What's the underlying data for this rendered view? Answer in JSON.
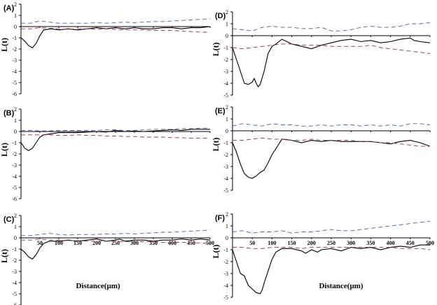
{
  "chart_data": [
    {
      "type": "line",
      "panel": "(A)",
      "ylabel": "L(t)",
      "ylim": [
        -6,
        2
      ],
      "yticks": [
        "2",
        "1",
        "0",
        "-1",
        "-2",
        "-3",
        "-4",
        "-5",
        "-6"
      ],
      "xlim": [
        0,
        500
      ],
      "xticks": [],
      "xlabel": "",
      "series": [
        {
          "style": "solid-black",
          "x": [
            0,
            10,
            20,
            30,
            40,
            50,
            60,
            80,
            100,
            125,
            150,
            175,
            200,
            225,
            250,
            275,
            300,
            325,
            350,
            375,
            400,
            425,
            450,
            475,
            500
          ],
          "y": [
            -1.0,
            -1.3,
            -1.7,
            -1.9,
            -1.5,
            -0.8,
            -0.3,
            -0.2,
            -0.3,
            -0.2,
            -0.3,
            -0.2,
            -0.1,
            -0.2,
            -0.1,
            -0.2,
            -0.1,
            -0.2,
            -0.2,
            -0.1,
            -0.1,
            -0.2,
            -0.1,
            -0.1,
            0.0
          ]
        },
        {
          "style": "dashed-blue",
          "x": [
            0,
            25,
            50,
            75,
            100,
            125,
            150,
            175,
            200,
            225,
            250,
            275,
            300,
            325,
            350,
            375,
            400,
            425,
            450,
            475,
            500
          ],
          "y": [
            0.3,
            0.3,
            0.5,
            0.4,
            0.3,
            0.3,
            0.3,
            0.3,
            0.35,
            0.3,
            0.35,
            0.4,
            0.35,
            0.4,
            0.45,
            0.45,
            0.5,
            0.55,
            0.6,
            0.65,
            0.7
          ]
        },
        {
          "style": "dashed-red",
          "x": [
            0,
            25,
            50,
            75,
            100,
            125,
            150,
            175,
            200,
            225,
            250,
            275,
            300,
            325,
            350,
            375,
            400,
            425,
            450,
            475,
            500
          ],
          "y": [
            -0.2,
            -0.2,
            -0.1,
            -0.15,
            -0.2,
            -0.25,
            -0.2,
            -0.2,
            -0.25,
            -0.2,
            -0.25,
            -0.3,
            -0.3,
            -0.3,
            -0.35,
            -0.35,
            -0.35,
            -0.4,
            -0.45,
            -0.5,
            -0.5
          ]
        }
      ]
    },
    {
      "type": "line",
      "panel": "(B)",
      "ylabel": "L(t)",
      "ylim": [
        -6,
        2
      ],
      "yticks": [
        "2",
        "1",
        "0",
        "-1",
        "-2",
        "-3",
        "-4",
        "-5",
        "-6"
      ],
      "xlim": [
        0,
        500
      ],
      "xticks": [],
      "xlabel": "",
      "series": [
        {
          "style": "solid-black",
          "x": [
            0,
            10,
            20,
            30,
            40,
            50,
            60,
            80,
            100,
            125,
            150,
            175,
            200,
            225,
            250,
            275,
            300,
            325,
            350,
            375,
            400,
            425,
            450,
            475,
            500
          ],
          "y": [
            -1.0,
            -1.5,
            -1.7,
            -1.5,
            -1.0,
            -0.5,
            -0.3,
            -0.2,
            -0.1,
            -0.1,
            -0.1,
            -0.05,
            0.0,
            -0.05,
            0.1,
            0.0,
            0.05,
            0.0,
            0.05,
            0.1,
            0.15,
            0.1,
            0.2,
            0.2,
            0.2
          ]
        },
        {
          "style": "dashed-blue",
          "x": [
            0,
            25,
            50,
            75,
            100,
            125,
            150,
            175,
            200,
            225,
            250,
            275,
            300,
            325,
            350,
            375,
            400,
            425,
            450,
            475,
            500
          ],
          "y": [
            0.1,
            0.1,
            0.05,
            0.05,
            0.1,
            0.1,
            0.1,
            0.1,
            0.1,
            0.15,
            0.15,
            0.1,
            0.1,
            0.15,
            0.2,
            0.2,
            0.2,
            0.25,
            0.25,
            0.3,
            0.3
          ]
        },
        {
          "style": "dashed-red",
          "x": [
            0,
            25,
            50,
            75,
            100,
            125,
            150,
            175,
            200,
            225,
            250,
            275,
            300,
            325,
            350,
            375,
            400,
            425,
            450,
            475,
            500
          ],
          "y": [
            -0.3,
            -0.3,
            -0.3,
            -0.3,
            -0.35,
            -0.35,
            -0.3,
            -0.35,
            -0.35,
            -0.4,
            -0.4,
            -0.45,
            -0.45,
            -0.5,
            -0.5,
            -0.5,
            -0.55,
            -0.55,
            -0.6,
            -0.6,
            -0.6
          ]
        }
      ]
    },
    {
      "type": "line",
      "panel": "(C)",
      "ylabel": "L(t)",
      "ylim": [
        -6,
        2
      ],
      "yticks": [
        "2",
        "1",
        "0",
        "-1",
        "-2",
        "-3",
        "-4",
        "-5",
        "-6"
      ],
      "xlim": [
        0,
        500
      ],
      "xticks": [
        "50",
        "100",
        "150",
        "200",
        "250",
        "300",
        "350",
        "400",
        "450",
        "500"
      ],
      "xlabel": "Distance(μm)",
      "series": [
        {
          "style": "solid-black",
          "x": [
            0,
            10,
            20,
            30,
            40,
            50,
            60,
            75,
            100,
            125,
            150,
            175,
            200,
            225,
            250,
            260,
            275,
            300,
            325,
            350,
            375,
            400,
            425,
            450,
            475,
            500
          ],
          "y": [
            -1.0,
            -1.3,
            -1.7,
            -1.9,
            -1.5,
            -0.9,
            -0.5,
            -0.3,
            -0.3,
            -0.2,
            -0.3,
            -0.2,
            -0.1,
            -0.3,
            -0.2,
            -0.1,
            -0.3,
            -0.2,
            -0.2,
            -0.3,
            -0.2,
            -0.2,
            -0.1,
            -0.2,
            -0.1,
            -0.2
          ]
        },
        {
          "style": "dashed-blue",
          "x": [
            0,
            25,
            50,
            75,
            100,
            125,
            150,
            175,
            200,
            225,
            250,
            275,
            300,
            325,
            350,
            375,
            400,
            425,
            450,
            475,
            500
          ],
          "y": [
            0.2,
            0.2,
            0.3,
            0.4,
            0.3,
            0.25,
            0.3,
            0.3,
            0.3,
            0.35,
            0.35,
            0.4,
            0.35,
            0.4,
            0.45,
            0.5,
            0.5,
            0.55,
            0.6,
            0.65,
            0.7
          ]
        },
        {
          "style": "dashed-red",
          "x": [
            0,
            25,
            50,
            75,
            100,
            125,
            150,
            175,
            200,
            225,
            250,
            275,
            300,
            325,
            350,
            375,
            400,
            425,
            450,
            475,
            500
          ],
          "y": [
            -0.2,
            -0.2,
            -0.1,
            -0.2,
            -0.2,
            -0.25,
            -0.25,
            -0.3,
            -0.3,
            -0.3,
            -0.3,
            -0.35,
            -0.35,
            -0.35,
            -0.35,
            -0.4,
            -0.4,
            -0.4,
            -0.45,
            -0.45,
            -0.5
          ]
        }
      ]
    },
    {
      "type": "line",
      "panel": "(D)",
      "ylabel": "L(t)",
      "ylim": [
        -5,
        2
      ],
      "yticks": [
        "2",
        "1",
        "0",
        "-1",
        "-2",
        "-3",
        "-4",
        "-5"
      ],
      "xlim": [
        0,
        500
      ],
      "xticks": [],
      "xlabel": "",
      "series": [
        {
          "style": "solid-black",
          "x": [
            0,
            10,
            20,
            30,
            40,
            50,
            55,
            60,
            65,
            70,
            80,
            90,
            100,
            110,
            125,
            150,
            175,
            200,
            225,
            250,
            275,
            300,
            325,
            350,
            375,
            400,
            425,
            450,
            460,
            475,
            500
          ],
          "y": [
            -1.0,
            -2.0,
            -3.0,
            -4.0,
            -4.1,
            -3.9,
            -3.6,
            -4.0,
            -4.3,
            -4.1,
            -3.0,
            -1.5,
            -0.9,
            -0.7,
            -0.3,
            -0.7,
            -0.9,
            -1.1,
            -0.8,
            -0.6,
            -0.4,
            -0.3,
            -0.5,
            -0.4,
            -0.6,
            -0.5,
            -0.3,
            -0.2,
            -0.4,
            -0.5,
            -0.6
          ]
        },
        {
          "style": "dashed-blue",
          "x": [
            0,
            25,
            50,
            75,
            100,
            125,
            150,
            175,
            200,
            225,
            250,
            275,
            300,
            325,
            350,
            375,
            400,
            425,
            450,
            475,
            500
          ],
          "y": [
            0.6,
            0.5,
            0.4,
            0.7,
            0.8,
            0.7,
            0.7,
            0.6,
            0.6,
            0.7,
            0.4,
            0.4,
            0.5,
            0.7,
            0.8,
            0.7,
            0.7,
            0.8,
            1.0,
            1.0,
            1.1
          ]
        },
        {
          "style": "dashed-red",
          "x": [
            0,
            25,
            50,
            75,
            100,
            125,
            150,
            175,
            200,
            225,
            250,
            275,
            300,
            325,
            350,
            375,
            400,
            425,
            450,
            475,
            500
          ],
          "y": [
            -1.0,
            -1.1,
            -1.0,
            -0.9,
            -0.8,
            -0.7,
            -0.7,
            -0.8,
            -0.8,
            -0.8,
            -0.9,
            -0.9,
            -0.9,
            -0.9,
            -0.8,
            -1.0,
            -1.1,
            -1.2,
            -1.3,
            -1.4,
            -1.5
          ]
        }
      ]
    },
    {
      "type": "line",
      "panel": "(E)",
      "ylabel": "L(t)",
      "ylim": [
        -5,
        2
      ],
      "yticks": [
        "2",
        "1",
        "0",
        "-1",
        "-2",
        "-3",
        "-4",
        "-5"
      ],
      "xlim": [
        0,
        500
      ],
      "xticks": [],
      "xlabel": "",
      "series": [
        {
          "style": "solid-black",
          "x": [
            0,
            10,
            20,
            30,
            40,
            50,
            60,
            70,
            80,
            90,
            100,
            110,
            125,
            150,
            175,
            200,
            225,
            250,
            275,
            300,
            325,
            350,
            375,
            400,
            425,
            450,
            475,
            500
          ],
          "y": [
            -1.0,
            -1.8,
            -2.8,
            -3.6,
            -3.9,
            -4.0,
            -3.8,
            -3.5,
            -3.3,
            -2.7,
            -2.0,
            -1.5,
            -0.7,
            -0.8,
            -1.0,
            -0.8,
            -0.9,
            -0.8,
            -0.9,
            -0.9,
            -0.9,
            -0.9,
            -1.0,
            -1.1,
            -0.9,
            -0.8,
            -1.0,
            -1.3
          ]
        },
        {
          "style": "dashed-blue",
          "x": [
            0,
            25,
            50,
            75,
            100,
            125,
            150,
            175,
            200,
            225,
            250,
            275,
            300,
            325,
            350,
            375,
            400,
            425,
            450,
            475,
            500
          ],
          "y": [
            0.4,
            0.6,
            0.5,
            0.4,
            0.6,
            0.5,
            0.5,
            0.4,
            0.4,
            0.5,
            0.4,
            0.5,
            0.5,
            0.4,
            0.5,
            0.4,
            0.5,
            0.4,
            0.6,
            0.6,
            0.5
          ]
        },
        {
          "style": "dashed-red",
          "x": [
            0,
            25,
            50,
            75,
            100,
            125,
            150,
            175,
            200,
            225,
            250,
            275,
            300,
            325,
            350,
            375,
            400,
            425,
            450,
            475,
            500
          ],
          "y": [
            -0.8,
            -0.8,
            -0.7,
            -0.6,
            -0.7,
            -0.7,
            -0.8,
            -0.8,
            -0.7,
            -0.8,
            -0.8,
            -0.8,
            -0.8,
            -0.9,
            -0.9,
            -1.0,
            -1.0,
            -1.1,
            -1.2,
            -1.3,
            -1.3
          ]
        }
      ]
    },
    {
      "type": "line",
      "panel": "(F)",
      "ylabel": "L(t)",
      "ylim": [
        -5,
        2
      ],
      "yticks": [
        "2",
        "1",
        "0",
        "-1",
        "-2",
        "-3",
        "-4",
        "-5"
      ],
      "xlim": [
        0,
        500
      ],
      "xticks": [
        "50",
        "100",
        "150",
        "200",
        "250",
        "300",
        "350",
        "400",
        "450",
        "500"
      ],
      "xlabel": "Distance(μm)",
      "series": [
        {
          "style": "solid-black",
          "x": [
            0,
            10,
            20,
            30,
            40,
            50,
            60,
            70,
            75,
            80,
            90,
            100,
            110,
            125,
            150,
            175,
            185,
            200,
            215,
            225,
            250,
            275,
            300,
            325,
            350,
            375,
            400,
            425,
            450,
            475,
            500
          ],
          "y": [
            -1.0,
            -2.0,
            -3.0,
            -3.2,
            -4.0,
            -4.3,
            -4.6,
            -4.7,
            -4.4,
            -3.8,
            -2.8,
            -1.8,
            -1.2,
            -0.9,
            -0.9,
            -1.1,
            -1.3,
            -1.0,
            -1.2,
            -1.0,
            -0.9,
            -1.1,
            -0.8,
            -0.9,
            -0.8,
            -1.0,
            -0.8,
            -0.7,
            -0.8,
            -0.6,
            -0.6
          ]
        },
        {
          "style": "dashed-blue",
          "x": [
            0,
            25,
            50,
            75,
            100,
            125,
            150,
            175,
            200,
            225,
            250,
            275,
            300,
            325,
            350,
            375,
            400,
            425,
            450,
            475,
            500
          ],
          "y": [
            0.5,
            0.6,
            0.4,
            0.5,
            0.5,
            0.6,
            0.4,
            0.5,
            0.5,
            0.6,
            0.7,
            0.6,
            0.6,
            0.7,
            0.8,
            0.9,
            1.0,
            1.1,
            1.2,
            1.3,
            1.4
          ]
        },
        {
          "style": "dashed-red",
          "x": [
            0,
            25,
            50,
            75,
            100,
            125,
            150,
            175,
            200,
            225,
            250,
            275,
            300,
            325,
            350,
            375,
            400,
            425,
            450,
            475,
            500
          ],
          "y": [
            -0.8,
            -0.8,
            -0.9,
            -0.9,
            -0.8,
            -0.8,
            -0.8,
            -0.9,
            -0.8,
            -0.8,
            -0.8,
            -0.8,
            -0.8,
            -0.8,
            -0.8,
            -0.8,
            -0.8,
            -0.9,
            -0.9,
            -0.9,
            -1.0
          ]
        }
      ]
    }
  ],
  "colors": {
    "solid_line": "#000000",
    "dashed_upper": "#4a5ab0",
    "dashed_lower": "#9a2c52",
    "axis": "#000000"
  }
}
